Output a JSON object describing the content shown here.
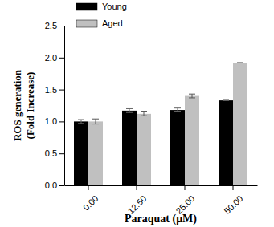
{
  "chart_data": {
    "type": "bar",
    "x_label": "Paraquat (μM)",
    "y_label": [
      "ROS generation",
      "(Fold Increase)"
    ],
    "categories": [
      "0.00",
      "12.50",
      "25.00",
      "50.00"
    ],
    "series": [
      {
        "name": "Young",
        "color": "#000000",
        "values": [
          1.0,
          1.17,
          1.18,
          1.33
        ],
        "errors": [
          0.03,
          0.03,
          0.03,
          0
        ]
      },
      {
        "name": "Aged",
        "color": "#c0c0c0",
        "values": [
          1.0,
          1.12,
          1.4,
          1.92
        ],
        "errors": [
          0.04,
          0.03,
          0.03,
          0
        ]
      }
    ],
    "ylim": [
      0,
      2.5
    ],
    "yticks": [
      {
        "value": 0,
        "label": "0.0"
      },
      {
        "value": 0.5,
        "label": "0.5"
      },
      {
        "value": 1,
        "label": "1.0"
      },
      {
        "value": 1.5,
        "label": "1.5"
      },
      {
        "value": 2,
        "label": "2.0"
      },
      {
        "value": 2.5,
        "label": "2.5"
      }
    ],
    "legend": "upper left",
    "grid": false
  }
}
